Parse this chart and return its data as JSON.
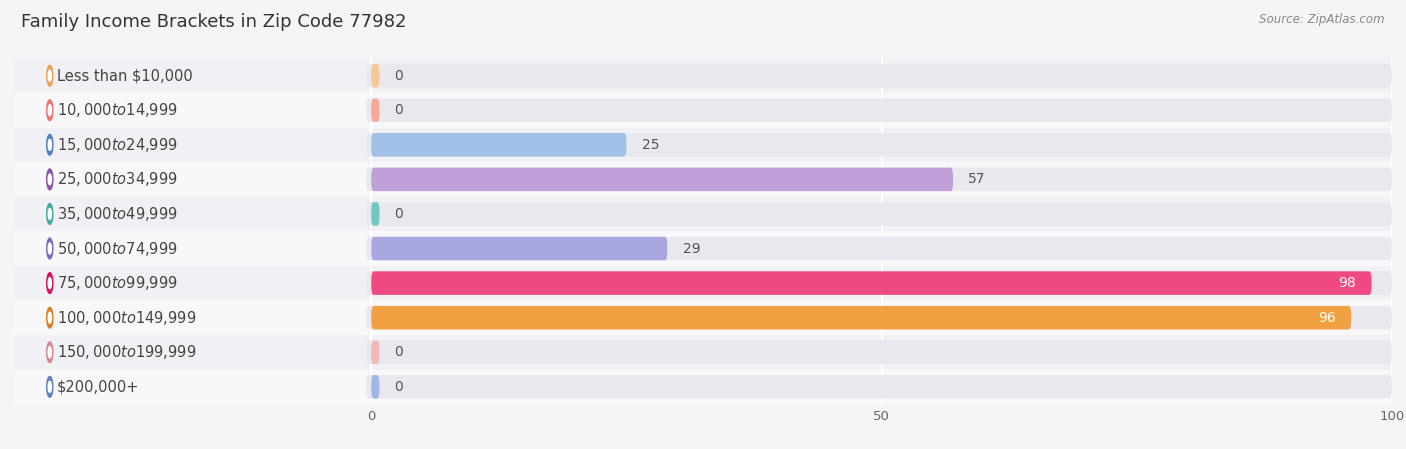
{
  "title": "Family Income Brackets in Zip Code 77982",
  "source": "Source: ZipAtlas.com",
  "categories": [
    "Less than $10,000",
    "$10,000 to $14,999",
    "$15,000 to $24,999",
    "$25,000 to $34,999",
    "$35,000 to $49,999",
    "$50,000 to $74,999",
    "$75,000 to $99,999",
    "$100,000 to $149,999",
    "$150,000 to $199,999",
    "$200,000+"
  ],
  "values": [
    0,
    0,
    25,
    57,
    0,
    29,
    98,
    96,
    0,
    0
  ],
  "bar_colors": [
    "#F5C898",
    "#F5A898",
    "#A0C0E8",
    "#C0A0D8",
    "#70C8C0",
    "#A8A8E0",
    "#F04880",
    "#F0A040",
    "#F0B8B8",
    "#A0B8E8"
  ],
  "dot_colors": [
    "#EDA050",
    "#EE7070",
    "#5080C0",
    "#8850A8",
    "#40A8A0",
    "#7070B8",
    "#D81060",
    "#D88020",
    "#D88888",
    "#6080C0"
  ],
  "track_color": "#E8E8EE",
  "row_colors": [
    "#F0F0F5",
    "#F8F8FA"
  ],
  "xlim": [
    0,
    100
  ],
  "xticks": [
    0,
    50,
    100
  ],
  "background_color": "#F5F5F8",
  "title_fontsize": 13,
  "label_fontsize": 10.5,
  "value_fontsize": 10,
  "source_fontsize": 8.5
}
